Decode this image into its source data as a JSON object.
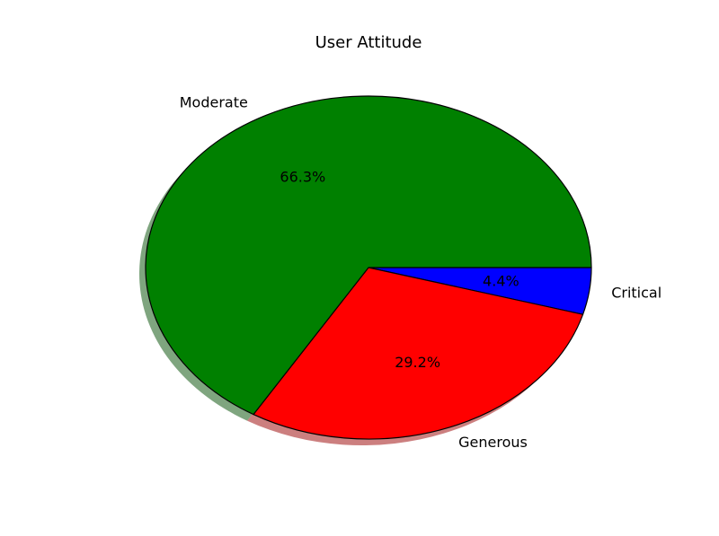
{
  "chart_data": {
    "type": "pie",
    "title": "User Attitude",
    "slices": [
      {
        "label": "Critical",
        "value": 4.4,
        "pct_label": "4.4%",
        "color": "#0000ff"
      },
      {
        "label": "Generous",
        "value": 29.2,
        "pct_label": "29.2%",
        "color": "#ff0000"
      },
      {
        "label": "Moderate",
        "value": 66.3,
        "pct_label": "66.3%",
        "color": "#008000"
      }
    ],
    "start_angle_deg": 0,
    "direction": "clockwise-on-screen",
    "shadow": true,
    "edge_color": "#000000",
    "legend": "none"
  }
}
